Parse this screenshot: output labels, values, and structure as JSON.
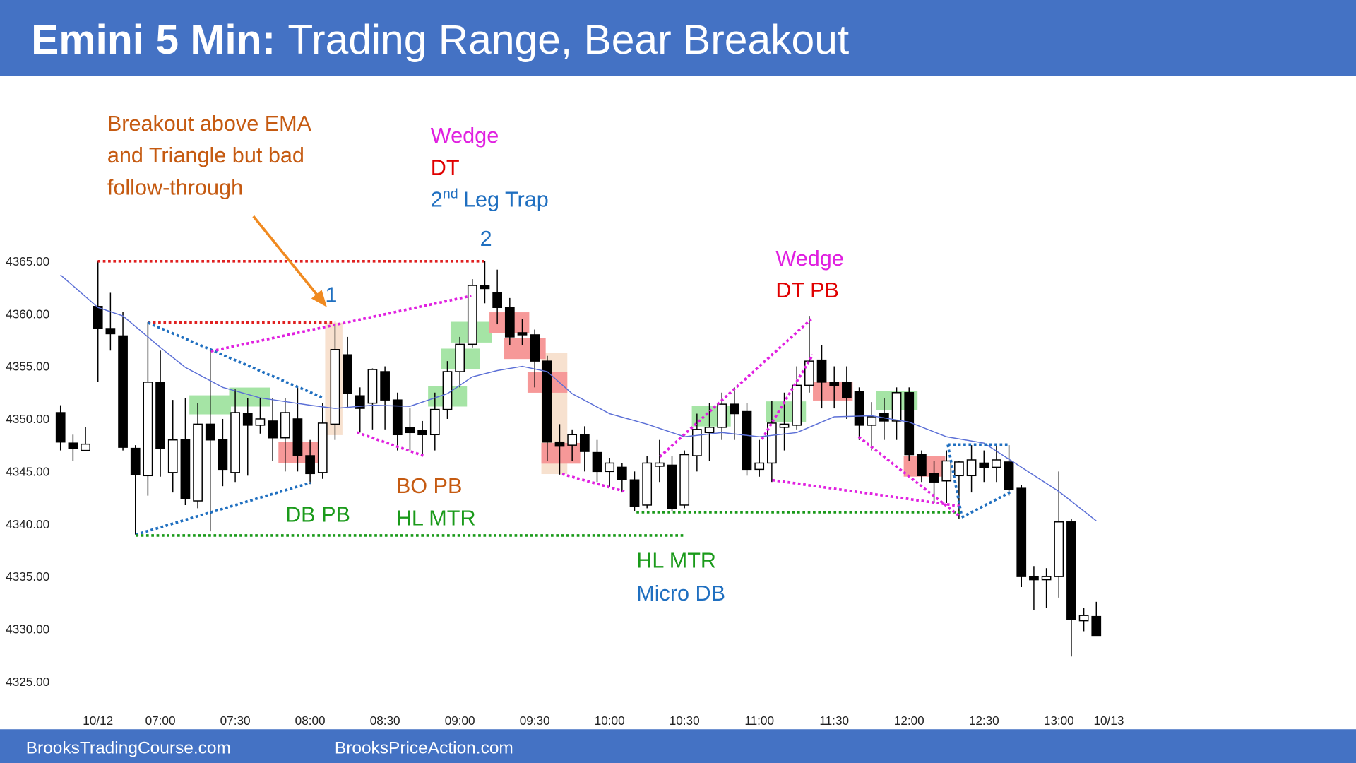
{
  "header": {
    "title_bold": "Emini 5 Min:",
    "title": "Trading Range, Bear Breakout"
  },
  "chart_data": {
    "type": "candlestick",
    "categories": [
      null,
      null,
      null,
      "10/12",
      null,
      null,
      null,
      null,
      "07:00",
      null,
      null,
      null,
      null,
      null,
      "07:30",
      null,
      null,
      null,
      null,
      null,
      "08:00",
      null,
      null,
      null,
      null,
      null,
      "08:30",
      null,
      null,
      null,
      null,
      null,
      "09:00",
      null,
      null,
      null,
      null,
      null,
      "09:30",
      null,
      null,
      null,
      null,
      null,
      "10:00",
      null,
      null,
      null,
      null,
      null,
      "10:30",
      null,
      null,
      null,
      null,
      null,
      "11:00",
      null,
      null,
      null,
      null,
      null,
      "11:30",
      null,
      null,
      null,
      null,
      null,
      "12:00",
      null,
      null,
      null,
      null,
      null,
      "12:30",
      null,
      null,
      null,
      null,
      null,
      "13:00",
      null,
      null,
      null,
      "10/13"
    ],
    "open": [
      4350.6,
      4347.7,
      4347.0,
      4360.7,
      4358.6,
      4357.9,
      4347.2,
      4344.6,
      4353.5,
      4344.9,
      4348.0,
      4342.2,
      4349.5,
      4348.0,
      4344.9,
      4350.5,
      4349.4,
      4349.8,
      4348.2,
      4350.0,
      4346.5,
      4344.9,
      4349.5,
      4356.1,
      4352.2,
      4351.5,
      4354.5,
      4351.8,
      4349.2,
      4348.9,
      4348.5,
      4350.9,
      4354.5,
      4357.1,
      4362.7,
      4362.0,
      4360.6,
      4358.2,
      4358.0,
      4355.5,
      4347.8,
      4347.5,
      4348.5,
      4346.8,
      4345.0,
      4345.4,
      4344.2,
      4341.8,
      4345.5,
      4345.6,
      4341.8,
      4346.5,
      4348.7,
      4349.2,
      4351.4,
      4350.7,
      4345.2,
      4345.8,
      4349.2,
      4349.4,
      4353.2,
      4355.6,
      4353.5,
      4353.5,
      4352.6,
      4349.4,
      4350.5,
      4349.8,
      4352.5,
      4346.6,
      4344.8,
      4344.1,
      4344.6,
      4344.6,
      4345.8,
      4345.4,
      4345.9,
      4343.4,
      4335.0,
      4334.7,
      4335.0,
      4340.2,
      4330.8,
      4331.2,
      null
    ],
    "high": [
      4351.3,
      4348.5,
      4349.2,
      4365.0,
      4362.0,
      4360.2,
      4347.5,
      4359.2,
      4356.5,
      4351.8,
      4352.0,
      4351.5,
      4356.5,
      4350.0,
      4352.8,
      4352.0,
      4352.0,
      4352.0,
      4352.0,
      4353.0,
      4348.0,
      4351.5,
      4359.0,
      4357.8,
      4353.0,
      4354.8,
      4355.0,
      4352.5,
      4351.0,
      4349.8,
      4352.5,
      4355.5,
      4357.8,
      4363.3,
      4365.0,
      4364.2,
      4361.5,
      4359.5,
      4358.5,
      4356.0,
      4349.5,
      4349.0,
      4349.3,
      4348.0,
      4346.3,
      4345.8,
      4345.0,
      4346.5,
      4348.0,
      4346.5,
      4347.0,
      4350.5,
      4351.5,
      4352.5,
      4353.0,
      4351.5,
      4348.0,
      4351.7,
      4352.5,
      4355.0,
      4359.8,
      4357.0,
      4355.0,
      4355.0,
      4353.0,
      4351.6,
      4352.0,
      4353.0,
      4353.0,
      4347.0,
      4346.0,
      4347.0,
      4346.0,
      4347.5,
      4347.0,
      4347.5,
      4347.5,
      4343.7,
      4336.0,
      4335.8,
      4345.0,
      4340.5,
      4332.0,
      4332.6,
      null
    ],
    "low": [
      4347.0,
      4346.0,
      4347.0,
      4353.5,
      4356.5,
      4347.0,
      4339.0,
      4342.7,
      4344.5,
      4343.0,
      4341.8,
      4341.5,
      4339.3,
      4343.6,
      4344.0,
      4344.6,
      4348.6,
      4346.0,
      4345.0,
      4345.0,
      4343.8,
      4344.3,
      4348.0,
      4351.0,
      4348.7,
      4349.0,
      4349.0,
      4347.0,
      4347.0,
      4346.5,
      4347.0,
      4350.0,
      4353.0,
      4356.8,
      4361.0,
      4359.0,
      4357.0,
      4357.0,
      4353.0,
      4346.0,
      4344.7,
      4346.0,
      4345.0,
      4344.0,
      4343.5,
      4343.0,
      4341.2,
      4341.5,
      4344.0,
      4341.2,
      4341.5,
      4345.0,
      4346.0,
      4348.0,
      4348.0,
      4344.6,
      4344.5,
      4344.0,
      4347.0,
      4349.0,
      4352.5,
      4351.0,
      4351.0,
      4350.0,
      4348.0,
      4347.0,
      4348.0,
      4348.0,
      4346.0,
      4344.0,
      4342.0,
      4342.0,
      4340.5,
      4343.0,
      4344.0,
      4344.0,
      4342.7,
      4334.0,
      4331.8,
      4332.0,
      4333.0,
      4327.4,
      4329.8,
      4329.4,
      null
    ],
    "close": [
      4347.8,
      4347.2,
      4347.6,
      4358.6,
      4358.1,
      4347.3,
      4344.7,
      4353.5,
      4347.2,
      4348.0,
      4342.4,
      4349.5,
      4348.0,
      4345.2,
      4350.6,
      4349.4,
      4350.0,
      4348.2,
      4350.6,
      4346.5,
      4344.8,
      4349.6,
      4356.6,
      4352.4,
      4351.0,
      4354.7,
      4351.8,
      4348.5,
      4348.7,
      4348.5,
      4350.9,
      4354.5,
      4357.1,
      4362.7,
      4362.4,
      4360.6,
      4357.8,
      4358.0,
      4355.5,
      4347.8,
      4347.4,
      4348.5,
      4346.9,
      4345.0,
      4345.8,
      4344.2,
      4341.7,
      4345.8,
      4345.8,
      4341.5,
      4346.6,
      4349.0,
      4349.2,
      4351.4,
      4350.5,
      4345.2,
      4345.8,
      4349.6,
      4349.5,
      4353.2,
      4355.5,
      4353.5,
      4353.2,
      4352.0,
      4349.4,
      4350.2,
      4349.8,
      4352.5,
      4346.6,
      4344.6,
      4344.0,
      4346.0,
      4345.9,
      4346.1,
      4345.4,
      4346.1,
      4343.3,
      4335.0,
      4334.7,
      4335.0,
      4340.2,
      4330.9,
      4331.3,
      4329.4,
      null
    ],
    "up_color": "#ffffff",
    "down_color": "#000000",
    "ema": {
      "color": "#5b6fd6",
      "x": [
        0,
        3,
        5,
        8,
        10,
        13,
        16,
        20,
        22,
        25,
        28,
        31,
        33,
        35,
        37,
        39,
        41,
        44,
        47,
        50,
        53,
        56,
        59,
        62,
        65,
        68,
        71,
        74,
        77,
        80,
        83
      ],
      "values": [
        4363.7,
        4360.6,
        4359.8,
        4356.8,
        4354.9,
        4353.0,
        4352.0,
        4351.3,
        4351.0,
        4351.3,
        4351.2,
        4352.4,
        4354.0,
        4354.6,
        4355.0,
        4354.5,
        4352.4,
        4350.5,
        4349.5,
        4348.3,
        4348.7,
        4348.3,
        4348.7,
        4350.2,
        4350.3,
        4349.7,
        4348.3,
        4347.7,
        4345.4,
        4343.1,
        4340.3
      ]
    },
    "ylim": [
      4325,
      4365
    ],
    "yticks": [
      {
        "value": 4325,
        "label": "4325.00"
      },
      {
        "value": 4330,
        "label": "4330.00"
      },
      {
        "value": 4335,
        "label": "4335.00"
      },
      {
        "value": 4340,
        "label": "4340.00"
      },
      {
        "value": 4345,
        "label": "4345.00"
      },
      {
        "value": 4350,
        "label": "4350.00"
      },
      {
        "value": 4355,
        "label": "4355.00"
      },
      {
        "value": 4360,
        "label": "4360.00"
      },
      {
        "value": 4365,
        "label": "4365.00"
      }
    ],
    "annotations": [
      "Breakout above EMA",
      "and Triangle but bad",
      "follow-through",
      "Wedge",
      "DT",
      "2",
      "1",
      "Wedge",
      "DT PB",
      "DB PB",
      "BO PB",
      "HL MTR",
      "HL MTR",
      "Micro DB"
    ],
    "leg_trap": {
      "number": "2",
      "suffix": "nd",
      "text": "Leg Trap"
    }
  },
  "footer": [
    "BrooksTradingCourse.com",
    "BrooksPriceAction.com"
  ]
}
